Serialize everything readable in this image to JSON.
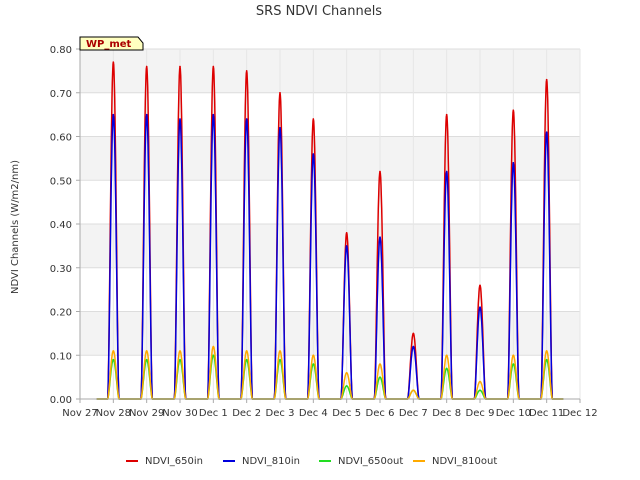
{
  "chart_data": {
    "type": "line",
    "title": "SRS NDVI Channels",
    "ylabel": "NDVI Channels (W/m2/nm)",
    "xlabel": "",
    "ylim": [
      0,
      0.8
    ],
    "xlim": [
      0,
      15
    ],
    "grid": true,
    "legend_placement": "bottom",
    "station_tag": "WP_met",
    "y_ticks": [
      "0.00",
      "0.10",
      "0.20",
      "0.30",
      "0.40",
      "0.50",
      "0.60",
      "0.70",
      "0.80"
    ],
    "x_ticks": [
      "Nov 27",
      "Nov 28",
      "Nov 29",
      "Nov 30",
      "Dec 1",
      "Dec 2",
      "Dec 3",
      "Dec 4",
      "Dec 5",
      "Dec 6",
      "Dec 7",
      "Dec 8",
      "Dec 9",
      "Dec 10",
      "Dec 11",
      "Dec 12"
    ],
    "series": [
      {
        "name": "NDVI_650in",
        "color": "#dd0000",
        "daily_peaks": [
          0.77,
          0.76,
          0.76,
          0.76,
          0.75,
          0.7,
          0.64,
          0.38,
          0.52,
          0.15,
          0.65,
          0.26,
          0.66,
          0.73
        ]
      },
      {
        "name": "NDVI_810in",
        "color": "#0000dd",
        "daily_peaks": [
          0.65,
          0.65,
          0.64,
          0.65,
          0.64,
          0.62,
          0.56,
          0.35,
          0.37,
          0.12,
          0.52,
          0.21,
          0.54,
          0.61
        ]
      },
      {
        "name": "NDVI_650out",
        "color": "#22dd22",
        "daily_peaks": [
          0.09,
          0.09,
          0.09,
          0.1,
          0.09,
          0.09,
          0.08,
          0.03,
          0.05,
          0.02,
          0.07,
          0.02,
          0.08,
          0.09
        ]
      },
      {
        "name": "NDVI_810out",
        "color": "#ffaa00",
        "daily_peaks": [
          0.11,
          0.11,
          0.11,
          0.12,
          0.11,
          0.11,
          0.1,
          0.06,
          0.08,
          0.02,
          0.1,
          0.04,
          0.1,
          0.11
        ]
      }
    ],
    "peak_day_offsets": [
      1,
      2,
      3,
      4,
      5,
      6,
      7,
      8,
      9,
      10,
      11,
      12,
      13,
      14
    ]
  }
}
